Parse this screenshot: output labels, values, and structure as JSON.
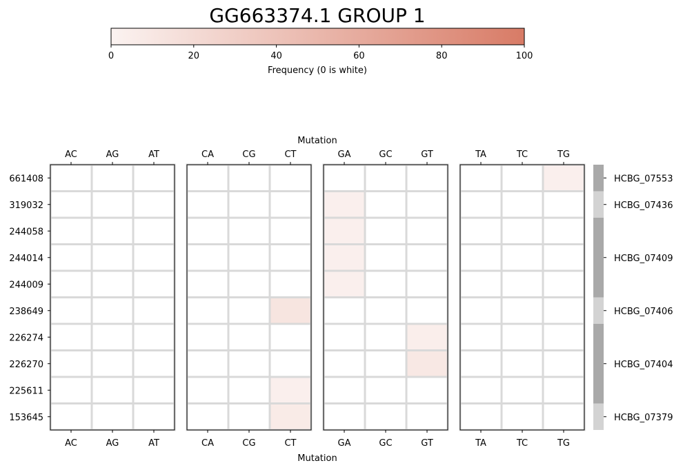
{
  "title": "GG663374.1 GROUP 1",
  "colorbar": {
    "label": "Frequency (0 is white)",
    "ticks": [
      "0",
      "20",
      "40",
      "60",
      "80",
      "100"
    ],
    "min": 0,
    "max": 100,
    "color_low": "#fbf3f1",
    "color_high": "#d87b66"
  },
  "chart_data": {
    "type": "heatmap",
    "xlabel": "Mutation",
    "groups": [
      {
        "columns": [
          "AC",
          "AG",
          "AT"
        ]
      },
      {
        "columns": [
          "CA",
          "CG",
          "CT"
        ]
      },
      {
        "columns": [
          "GA",
          "GC",
          "GT"
        ]
      },
      {
        "columns": [
          "TA",
          "TC",
          "TG"
        ]
      }
    ],
    "rows": [
      "661408",
      "319032",
      "244058",
      "244014",
      "244009",
      "238649",
      "226274",
      "226270",
      "225611",
      "153645"
    ],
    "values": [
      [
        0,
        0,
        0,
        0,
        0,
        0,
        0,
        0,
        0,
        0,
        0,
        3
      ],
      [
        0,
        0,
        0,
        0,
        0,
        0,
        3,
        0,
        0,
        0,
        0,
        0
      ],
      [
        0,
        0,
        0,
        0,
        0,
        0,
        3,
        0,
        0,
        0,
        0,
        0
      ],
      [
        0,
        0,
        0,
        0,
        0,
        0,
        3,
        0,
        0,
        0,
        0,
        0
      ],
      [
        0,
        0,
        0,
        0,
        0,
        0,
        3,
        0,
        0,
        0,
        0,
        0
      ],
      [
        0,
        0,
        0,
        0,
        0,
        12,
        0,
        0,
        0,
        0,
        0,
        0
      ],
      [
        0,
        0,
        0,
        0,
        0,
        0,
        0,
        0,
        4,
        0,
        0,
        0
      ],
      [
        0,
        0,
        0,
        0,
        0,
        0,
        0,
        0,
        9,
        0,
        0,
        0
      ],
      [
        0,
        0,
        0,
        0,
        0,
        3,
        0,
        0,
        0,
        0,
        0,
        0
      ],
      [
        0,
        0,
        0,
        0,
        0,
        7,
        0,
        0,
        0,
        0,
        0,
        0
      ]
    ],
    "gene_annotations": [
      {
        "label": "HCBG_07553",
        "rows": [
          0,
          0
        ],
        "color": "#a9a9a9"
      },
      {
        "label": "HCBG_07436",
        "rows": [
          1,
          1
        ],
        "color": "#d3d3d3"
      },
      {
        "label": "HCBG_07409",
        "rows": [
          2,
          4
        ],
        "color": "#a9a9a9"
      },
      {
        "label": "HCBG_07406",
        "rows": [
          5,
          5
        ],
        "color": "#d3d3d3"
      },
      {
        "label": "HCBG_07404",
        "rows": [
          6,
          8
        ],
        "color": "#a9a9a9"
      },
      {
        "label": "HCBG_07379",
        "rows": [
          9,
          9
        ],
        "color": "#d3d3d3"
      }
    ]
  }
}
